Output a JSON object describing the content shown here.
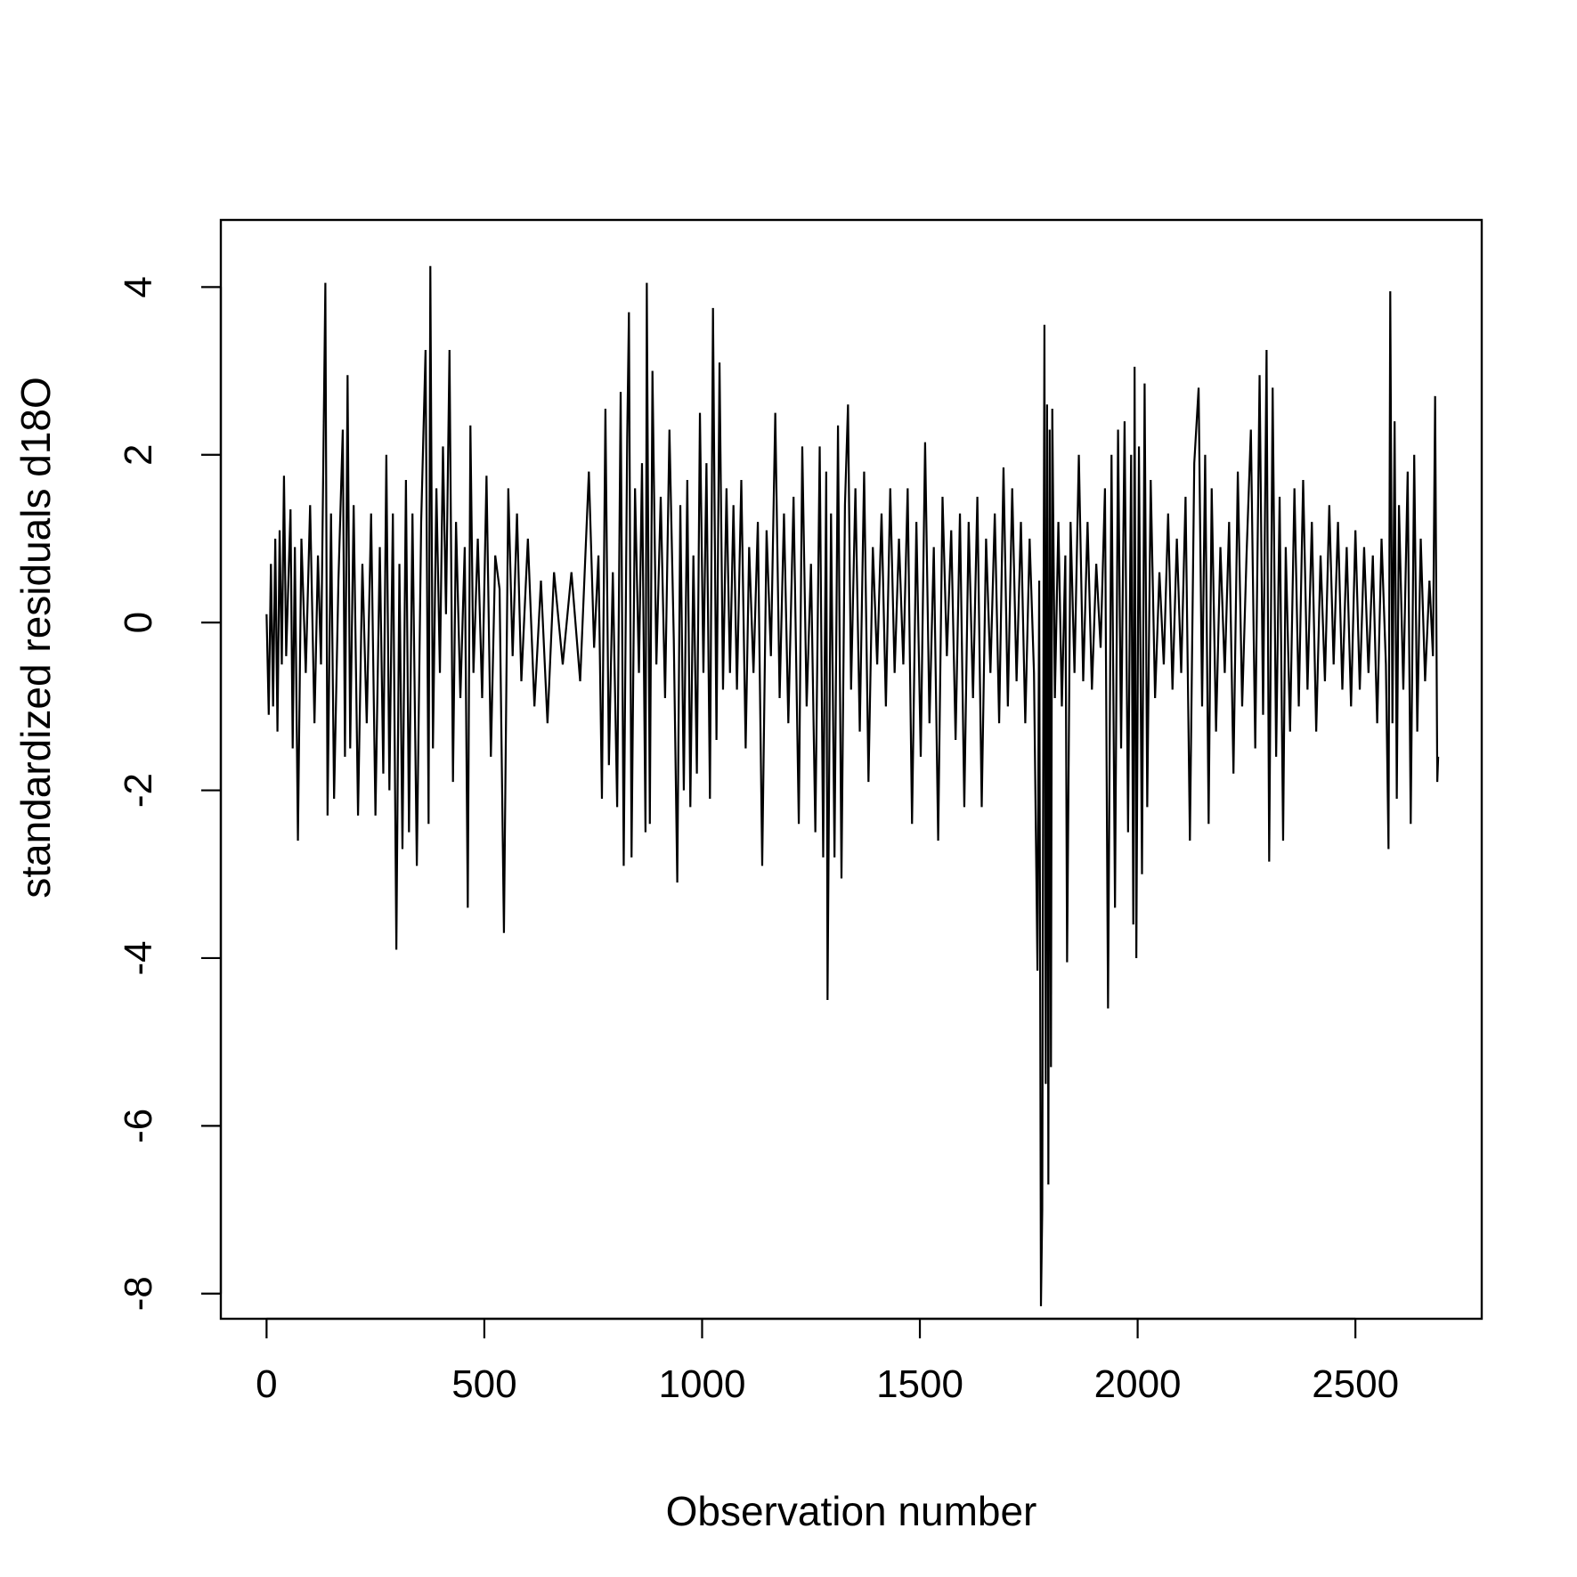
{
  "chart_data": {
    "type": "line",
    "title": "",
    "xlabel": "Observation number",
    "ylabel": "standardized residuals d18O",
    "xlim": [
      -105,
      2790
    ],
    "ylim": [
      -8.3,
      4.8
    ],
    "x_ticks": [
      0,
      500,
      1000,
      1500,
      2000,
      2500
    ],
    "y_ticks": [
      -8,
      -6,
      -4,
      -2,
      0,
      2,
      4
    ],
    "x_tick_labels": [
      "0",
      "500",
      "1000",
      "1500",
      "2000",
      "2500"
    ],
    "y_tick_labels": [
      "-8",
      "-6",
      "-4",
      "-2",
      "0",
      "2",
      "4"
    ],
    "grid": false,
    "legend": "none",
    "colors": {
      "line": "#000000",
      "axis": "#000000",
      "background": "#ffffff"
    },
    "series": [
      {
        "values": [
          [
            0,
            0.1
          ],
          [
            5,
            -1.1
          ],
          [
            10,
            0.7
          ],
          [
            15,
            -1.0
          ],
          [
            20,
            1.0
          ],
          [
            25,
            -1.3
          ],
          [
            30,
            1.1
          ],
          [
            35,
            -0.5
          ],
          [
            40,
            1.75
          ],
          [
            45,
            -0.4
          ],
          [
            55,
            1.35
          ],
          [
            60,
            -1.5
          ],
          [
            65,
            0.9
          ],
          [
            72,
            -2.6
          ],
          [
            80,
            1.0
          ],
          [
            90,
            -0.6
          ],
          [
            100,
            1.4
          ],
          [
            110,
            -1.2
          ],
          [
            118,
            0.8
          ],
          [
            125,
            -0.5
          ],
          [
            135,
            4.05
          ],
          [
            140,
            -2.3
          ],
          [
            148,
            1.3
          ],
          [
            155,
            -2.1
          ],
          [
            165,
            0.5
          ],
          [
            175,
            2.3
          ],
          [
            180,
            -1.6
          ],
          [
            186,
            2.95
          ],
          [
            192,
            -1.5
          ],
          [
            200,
            1.4
          ],
          [
            210,
            -2.3
          ],
          [
            220,
            0.7
          ],
          [
            230,
            -1.2
          ],
          [
            240,
            1.3
          ],
          [
            250,
            -2.3
          ],
          [
            260,
            0.9
          ],
          [
            268,
            -1.8
          ],
          [
            275,
            2.0
          ],
          [
            282,
            -2.0
          ],
          [
            290,
            1.3
          ],
          [
            298,
            -3.9
          ],
          [
            305,
            0.7
          ],
          [
            312,
            -2.7
          ],
          [
            320,
            1.7
          ],
          [
            327,
            -2.5
          ],
          [
            335,
            1.3
          ],
          [
            345,
            -2.9
          ],
          [
            355,
            1.2
          ],
          [
            365,
            3.25
          ],
          [
            372,
            -2.4
          ],
          [
            376,
            4.25
          ],
          [
            382,
            -1.5
          ],
          [
            390,
            1.6
          ],
          [
            398,
            -0.6
          ],
          [
            405,
            2.1
          ],
          [
            412,
            0.1
          ],
          [
            420,
            3.25
          ],
          [
            428,
            -1.9
          ],
          [
            435,
            1.2
          ],
          [
            445,
            -0.9
          ],
          [
            455,
            0.9
          ],
          [
            462,
            -3.4
          ],
          [
            468,
            2.35
          ],
          [
            475,
            -0.6
          ],
          [
            485,
            1.0
          ],
          [
            495,
            -0.9
          ],
          [
            505,
            1.75
          ],
          [
            515,
            -1.6
          ],
          [
            525,
            0.8
          ],
          [
            535,
            0.4
          ],
          [
            545,
            -3.7
          ],
          [
            555,
            1.6
          ],
          [
            565,
            -0.4
          ],
          [
            575,
            1.3
          ],
          [
            585,
            -0.7
          ],
          [
            600,
            1.0
          ],
          [
            615,
            -1.0
          ],
          [
            630,
            0.5
          ],
          [
            645,
            -1.2
          ],
          [
            660,
            0.6
          ],
          [
            680,
            -0.5
          ],
          [
            700,
            0.6
          ],
          [
            720,
            -0.7
          ],
          [
            740,
            1.8
          ],
          [
            752,
            -0.3
          ],
          [
            762,
            0.8
          ],
          [
            770,
            -2.1
          ],
          [
            778,
            2.55
          ],
          [
            786,
            -1.7
          ],
          [
            795,
            0.6
          ],
          [
            805,
            -2.2
          ],
          [
            813,
            2.75
          ],
          [
            820,
            -2.9
          ],
          [
            828,
            2.2
          ],
          [
            832,
            3.7
          ],
          [
            838,
            -2.8
          ],
          [
            846,
            1.6
          ],
          [
            855,
            -0.6
          ],
          [
            862,
            1.9
          ],
          [
            870,
            -2.5
          ],
          [
            873,
            4.05
          ],
          [
            880,
            -2.4
          ],
          [
            886,
            3.0
          ],
          [
            895,
            -0.5
          ],
          [
            905,
            1.5
          ],
          [
            915,
            -0.9
          ],
          [
            925,
            2.3
          ],
          [
            935,
            -0.2
          ],
          [
            943,
            -3.1
          ],
          [
            950,
            1.4
          ],
          [
            958,
            -2.0
          ],
          [
            966,
            1.7
          ],
          [
            973,
            -2.2
          ],
          [
            980,
            0.8
          ],
          [
            988,
            -1.8
          ],
          [
            995,
            2.5
          ],
          [
            1003,
            -0.6
          ],
          [
            1010,
            1.9
          ],
          [
            1018,
            -2.1
          ],
          [
            1025,
            3.75
          ],
          [
            1033,
            -1.4
          ],
          [
            1040,
            3.1
          ],
          [
            1048,
            -0.8
          ],
          [
            1056,
            1.6
          ],
          [
            1064,
            -0.6
          ],
          [
            1072,
            1.4
          ],
          [
            1080,
            -0.8
          ],
          [
            1090,
            1.7
          ],
          [
            1100,
            -1.5
          ],
          [
            1108,
            0.9
          ],
          [
            1118,
            -0.6
          ],
          [
            1128,
            1.2
          ],
          [
            1138,
            -2.9
          ],
          [
            1148,
            1.1
          ],
          [
            1158,
            -0.4
          ],
          [
            1168,
            2.5
          ],
          [
            1178,
            -0.9
          ],
          [
            1188,
            1.3
          ],
          [
            1198,
            -1.2
          ],
          [
            1210,
            1.5
          ],
          [
            1222,
            -2.4
          ],
          [
            1230,
            2.1
          ],
          [
            1240,
            -1.0
          ],
          [
            1250,
            0.7
          ],
          [
            1260,
            -2.5
          ],
          [
            1270,
            2.1
          ],
          [
            1278,
            -2.8
          ],
          [
            1285,
            1.8
          ],
          [
            1288,
            -4.5
          ],
          [
            1296,
            1.3
          ],
          [
            1304,
            -2.8
          ],
          [
            1312,
            2.35
          ],
          [
            1320,
            -3.05
          ],
          [
            1328,
            1.4
          ],
          [
            1335,
            2.6
          ],
          [
            1342,
            -0.8
          ],
          [
            1352,
            1.6
          ],
          [
            1362,
            -1.3
          ],
          [
            1372,
            1.8
          ],
          [
            1382,
            -1.9
          ],
          [
            1392,
            0.9
          ],
          [
            1402,
            -0.5
          ],
          [
            1412,
            1.3
          ],
          [
            1422,
            -1.0
          ],
          [
            1432,
            1.6
          ],
          [
            1442,
            -0.6
          ],
          [
            1452,
            1.0
          ],
          [
            1462,
            -0.5
          ],
          [
            1472,
            1.6
          ],
          [
            1482,
            -2.4
          ],
          [
            1492,
            1.2
          ],
          [
            1502,
            -1.6
          ],
          [
            1512,
            2.15
          ],
          [
            1522,
            -1.2
          ],
          [
            1532,
            0.9
          ],
          [
            1542,
            -2.6
          ],
          [
            1552,
            1.5
          ],
          [
            1562,
            -0.4
          ],
          [
            1572,
            1.1
          ],
          [
            1582,
            -1.4
          ],
          [
            1592,
            1.3
          ],
          [
            1602,
            -2.2
          ],
          [
            1612,
            1.2
          ],
          [
            1622,
            -0.9
          ],
          [
            1632,
            1.5
          ],
          [
            1642,
            -2.2
          ],
          [
            1652,
            1.0
          ],
          [
            1662,
            -0.6
          ],
          [
            1672,
            1.3
          ],
          [
            1682,
            -1.2
          ],
          [
            1692,
            1.85
          ],
          [
            1702,
            -1.0
          ],
          [
            1712,
            1.6
          ],
          [
            1722,
            -0.7
          ],
          [
            1732,
            1.2
          ],
          [
            1742,
            -1.2
          ],
          [
            1752,
            1.0
          ],
          [
            1762,
            -0.6
          ],
          [
            1770,
            -4.15
          ],
          [
            1774,
            0.5
          ],
          [
            1778,
            -8.15
          ],
          [
            1781,
            -7.0
          ],
          [
            1784,
            0.2
          ],
          [
            1786,
            3.55
          ],
          [
            1789,
            -5.5
          ],
          [
            1792,
            2.6
          ],
          [
            1795,
            -6.7
          ],
          [
            1798,
            2.3
          ],
          [
            1801,
            -5.3
          ],
          [
            1804,
            2.55
          ],
          [
            1810,
            -0.9
          ],
          [
            1818,
            1.2
          ],
          [
            1826,
            -1.0
          ],
          [
            1834,
            0.8
          ],
          [
            1838,
            -4.05
          ],
          [
            1846,
            1.2
          ],
          [
            1855,
            -0.6
          ],
          [
            1865,
            2.0
          ],
          [
            1875,
            -0.7
          ],
          [
            1885,
            1.2
          ],
          [
            1895,
            -0.8
          ],
          [
            1905,
            0.7
          ],
          [
            1915,
            -0.3
          ],
          [
            1925,
            1.6
          ],
          [
            1932,
            -4.6
          ],
          [
            1940,
            2.0
          ],
          [
            1948,
            -3.4
          ],
          [
            1955,
            2.3
          ],
          [
            1962,
            -1.5
          ],
          [
            1970,
            2.4
          ],
          [
            1978,
            -2.5
          ],
          [
            1985,
            2.0
          ],
          [
            1990,
            -3.6
          ],
          [
            1993,
            3.05
          ],
          [
            1997,
            -4.0
          ],
          [
            2003,
            2.1
          ],
          [
            2010,
            -3.0
          ],
          [
            2016,
            2.85
          ],
          [
            2022,
            -2.2
          ],
          [
            2030,
            1.7
          ],
          [
            2040,
            -0.9
          ],
          [
            2050,
            0.6
          ],
          [
            2060,
            -0.5
          ],
          [
            2070,
            1.3
          ],
          [
            2080,
            -0.8
          ],
          [
            2090,
            1.0
          ],
          [
            2100,
            -0.6
          ],
          [
            2110,
            1.5
          ],
          [
            2120,
            -2.6
          ],
          [
            2130,
            1.9
          ],
          [
            2140,
            2.8
          ],
          [
            2148,
            -1.0
          ],
          [
            2155,
            2.0
          ],
          [
            2163,
            -2.4
          ],
          [
            2170,
            1.6
          ],
          [
            2180,
            -1.3
          ],
          [
            2190,
            0.9
          ],
          [
            2200,
            -0.6
          ],
          [
            2210,
            1.2
          ],
          [
            2220,
            -1.8
          ],
          [
            2230,
            1.8
          ],
          [
            2240,
            -1.0
          ],
          [
            2250,
            0.8
          ],
          [
            2260,
            2.3
          ],
          [
            2270,
            -1.5
          ],
          [
            2280,
            2.95
          ],
          [
            2288,
            -1.1
          ],
          [
            2296,
            3.25
          ],
          [
            2302,
            -2.85
          ],
          [
            2310,
            2.8
          ],
          [
            2318,
            -1.6
          ],
          [
            2326,
            1.5
          ],
          [
            2334,
            -2.6
          ],
          [
            2340,
            0.9
          ],
          [
            2350,
            -1.3
          ],
          [
            2360,
            1.6
          ],
          [
            2370,
            -1.0
          ],
          [
            2380,
            1.7
          ],
          [
            2390,
            -0.8
          ],
          [
            2400,
            1.2
          ],
          [
            2410,
            -1.3
          ],
          [
            2420,
            0.8
          ],
          [
            2430,
            -0.7
          ],
          [
            2440,
            1.4
          ],
          [
            2450,
            -0.5
          ],
          [
            2460,
            1.2
          ],
          [
            2470,
            -0.8
          ],
          [
            2480,
            0.9
          ],
          [
            2490,
            -1.0
          ],
          [
            2500,
            1.1
          ],
          [
            2510,
            -0.8
          ],
          [
            2520,
            0.9
          ],
          [
            2530,
            -0.6
          ],
          [
            2540,
            0.8
          ],
          [
            2550,
            -1.2
          ],
          [
            2560,
            1.0
          ],
          [
            2570,
            -0.5
          ],
          [
            2576,
            -2.7
          ],
          [
            2580,
            3.95
          ],
          [
            2585,
            -1.2
          ],
          [
            2590,
            2.4
          ],
          [
            2595,
            -2.1
          ],
          [
            2600,
            1.4
          ],
          [
            2610,
            -0.8
          ],
          [
            2620,
            1.8
          ],
          [
            2627,
            -2.4
          ],
          [
            2635,
            2.0
          ],
          [
            2642,
            -1.3
          ],
          [
            2650,
            1.0
          ],
          [
            2660,
            -0.7
          ],
          [
            2670,
            0.5
          ],
          [
            2678,
            -0.4
          ],
          [
            2683,
            2.7
          ],
          [
            2688,
            -1.9
          ],
          [
            2690,
            -1.6
          ]
        ]
      }
    ]
  }
}
